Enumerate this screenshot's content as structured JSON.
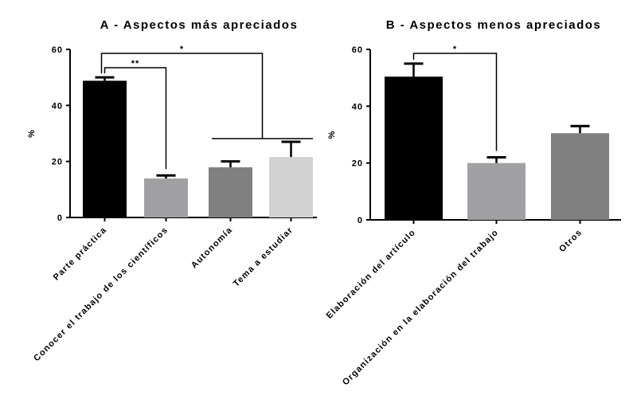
{
  "chart_data": [
    {
      "type": "bar",
      "title": "A - Aspectos más apreciados",
      "ylabel": "%",
      "ylim": [
        0,
        60
      ],
      "yticks": [
        0,
        20,
        40,
        60
      ],
      "categories": [
        "Parte práctica",
        "Conocer el trabajo de los científicos",
        "Autonomía",
        "Tema a estudiar"
      ],
      "values": [
        48.8,
        13.9,
        17.9,
        21.6
      ],
      "error_upper": [
        50,
        15,
        20,
        27
      ],
      "colors": [
        "#000000",
        "#a0a0a4",
        "#808080",
        "#d3d3d3"
      ],
      "annotations": [
        {
          "text": "**",
          "from": 0,
          "to": [
            1
          ]
        },
        {
          "text": "*",
          "from": 0,
          "to": [
            2,
            3
          ]
        }
      ]
    },
    {
      "type": "bar",
      "title": "B - Aspectos menos apreciados",
      "ylabel": "%",
      "ylim": [
        0,
        60
      ],
      "yticks": [
        0,
        20,
        40,
        60
      ],
      "categories": [
        "Elaboración del artículo",
        "Organización en la elaboración del trabajo",
        "Otros"
      ],
      "values": [
        50.4,
        20,
        30.5
      ],
      "error_upper": [
        55,
        22,
        33
      ],
      "colors": [
        "#000000",
        "#a0a0a4",
        "#808080"
      ],
      "annotations": [
        {
          "text": "*",
          "from": 0,
          "to": [
            1
          ]
        }
      ]
    }
  ]
}
